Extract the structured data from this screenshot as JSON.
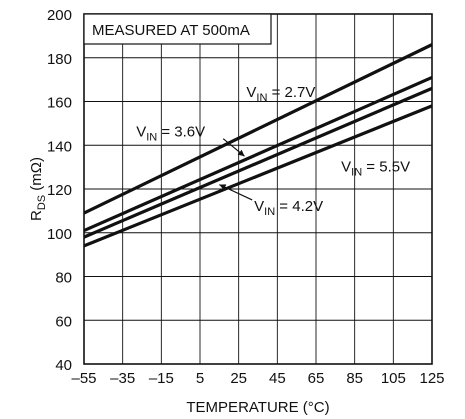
{
  "chart_data": {
    "type": "line",
    "annotation": "MEASURED AT 500mA",
    "xlabel": "TEMPERATURE (°C)",
    "ylabel": {
      "base": "R",
      "sub": "DS",
      "rest": " (mΩ)"
    },
    "xlim": [
      -55,
      125
    ],
    "ylim": [
      40,
      200
    ],
    "xticks": [
      -55,
      -35,
      -15,
      5,
      25,
      45,
      65,
      85,
      105,
      125
    ],
    "xtick_labels": [
      "–55",
      "–35",
      "–15",
      "5",
      "25",
      "45",
      "65",
      "85",
      "105",
      "125"
    ],
    "yticks": [
      40,
      60,
      80,
      100,
      120,
      140,
      160,
      180,
      200
    ],
    "grid": true,
    "series": [
      {
        "name": "V_IN = 2.7V",
        "label": {
          "base": "V",
          "sub": "IN",
          "rest": " = 2.7V"
        },
        "x": [
          -55,
          125
        ],
        "y": [
          109,
          186
        ]
      },
      {
        "name": "V_IN = 3.6V",
        "label": {
          "base": "V",
          "sub": "IN",
          "rest": " = 3.6V"
        },
        "x": [
          -55,
          125
        ],
        "y": [
          101,
          171
        ]
      },
      {
        "name": "V_IN = 4.2V",
        "label": {
          "base": "V",
          "sub": "IN",
          "rest": " = 4.2V"
        },
        "x": [
          -55,
          125
        ],
        "y": [
          98,
          166
        ]
      },
      {
        "name": "V_IN = 5.5V",
        "label": {
          "base": "V",
          "sub": "IN",
          "rest": " = 5.5V"
        },
        "x": [
          -55,
          125
        ],
        "y": [
          94,
          158
        ]
      }
    ]
  }
}
